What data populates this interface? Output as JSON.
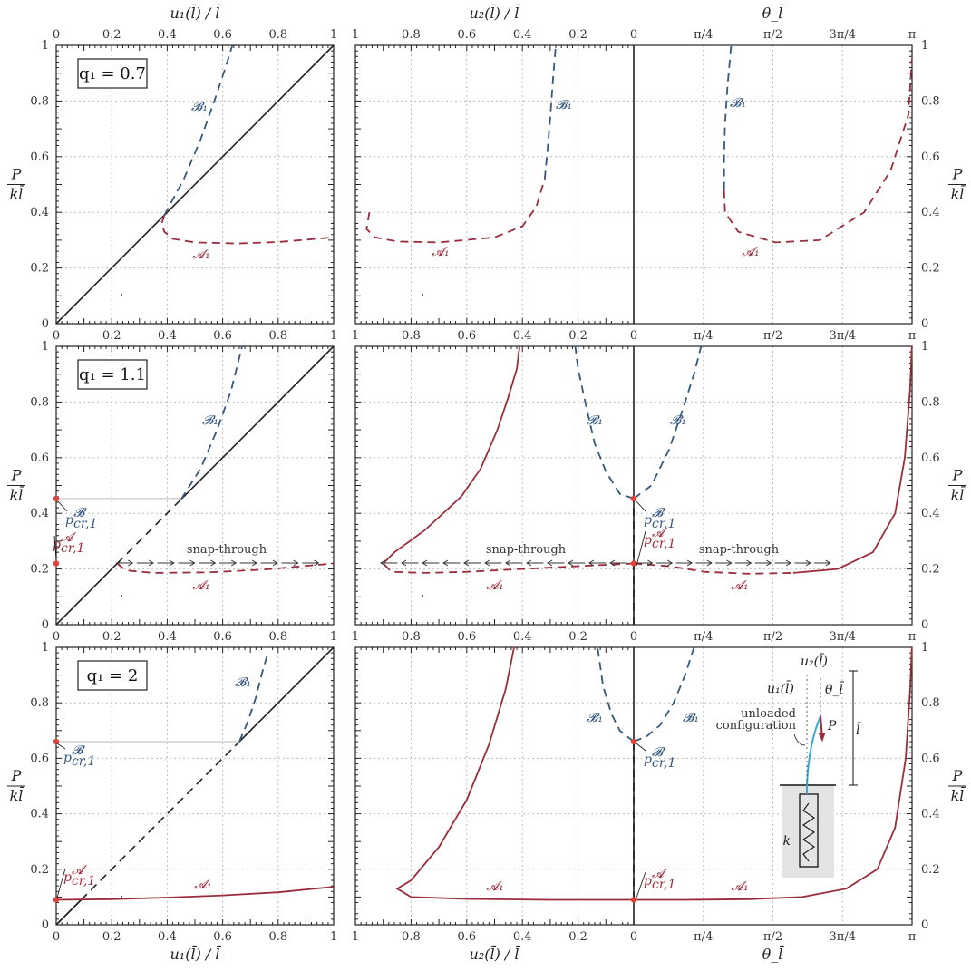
{
  "colors": {
    "A": "#9b2d3b",
    "B": "#34587f",
    "diag": "#222222",
    "pt": "#e0423a",
    "gray": "#c8c8c8",
    "inset_rod": "#3aa7d6"
  },
  "axes": {
    "u1_label": "u₁(l̄) / l̄",
    "u2_label": "u₂(l̄) / l̄",
    "theta_label": "θ_l̄",
    "p_num": "P",
    "p_den": "kl̄",
    "u1_ticks": [
      "0",
      "0.2",
      "0.4",
      "0.6",
      "0.8",
      "1"
    ],
    "u2_ticks": [
      "1",
      "0.8",
      "0.6",
      "0.4",
      "0.2",
      "0"
    ],
    "theta_ticks": [
      "π/4",
      "π/2",
      "3π/4",
      "π"
    ],
    "y_ticks": [
      "0",
      "0.2",
      "0.4",
      "0.6",
      "0.8",
      "1"
    ]
  },
  "annotations": {
    "snap": "snap-through",
    "pcr_b": "p",
    "pcr_b_sup": "𝓑",
    "pcr_sub": "cr,1",
    "pcr_a": "p",
    "pcr_a_sup": "𝓐",
    "A1": "𝓐₁",
    "B1": "𝓑₁"
  },
  "inset": {
    "u2": "u₂(l̄)",
    "u1": "u₁(l̄)",
    "theta": "θ_l̄",
    "P": "P",
    "lbar": "l̄",
    "k": "k",
    "unloaded1": "unloaded",
    "unloaded2": "configuration"
  },
  "chart_data": [
    {
      "q_label": "q₁ = 0.7",
      "type": "line",
      "xlim": [
        0,
        1
      ],
      "ylim": [
        0,
        1
      ],
      "theta_lim": [
        0,
        3.1416
      ],
      "grid": true,
      "A1_left": [
        [
          0.39,
          0.39
        ],
        [
          0.38,
          0.36
        ],
        [
          0.39,
          0.33
        ],
        [
          0.42,
          0.305
        ],
        [
          0.5,
          0.292
        ],
        [
          0.65,
          0.288
        ],
        [
          0.8,
          0.293
        ],
        [
          1.0,
          0.31
        ]
      ],
      "B1_left": [
        [
          0.39,
          0.39
        ],
        [
          0.46,
          0.52
        ],
        [
          0.52,
          0.66
        ],
        [
          0.57,
          0.8
        ],
        [
          0.61,
          0.92
        ],
        [
          0.635,
          1.0
        ]
      ],
      "A1_u2": [
        [
          0.95,
          0.4
        ],
        [
          0.96,
          0.34
        ],
        [
          0.93,
          0.31
        ],
        [
          0.85,
          0.295
        ],
        [
          0.7,
          0.292
        ],
        [
          0.5,
          0.31
        ],
        [
          0.4,
          0.35
        ],
        [
          0.35,
          0.42
        ],
        [
          0.32,
          0.52
        ]
      ],
      "B1_u2": [
        [
          0.32,
          0.52
        ],
        [
          0.31,
          0.62
        ],
        [
          0.3,
          0.74
        ],
        [
          0.29,
          0.88
        ],
        [
          0.28,
          1.0
        ]
      ],
      "A1_theta": [
        [
          1.02,
          0.48
        ],
        [
          1.03,
          0.4
        ],
        [
          1.18,
          0.33
        ],
        [
          1.6,
          0.292
        ],
        [
          2.1,
          0.3
        ],
        [
          2.6,
          0.4
        ],
        [
          2.9,
          0.55
        ],
        [
          3.1,
          0.75
        ],
        [
          3.14,
          0.95
        ]
      ],
      "B1_theta": [
        [
          1.02,
          0.48
        ],
        [
          1.02,
          0.6
        ],
        [
          1.03,
          0.72
        ],
        [
          1.06,
          0.86
        ],
        [
          1.1,
          1.0
        ]
      ]
    },
    {
      "q_label": "q₁ = 1.1",
      "type": "line",
      "xlim": [
        0,
        1
      ],
      "ylim": [
        0,
        1
      ],
      "theta_lim": [
        0,
        3.1416
      ],
      "grid": true,
      "pcr_B": 0.453,
      "pcr_A": 0.22,
      "A1_left": [
        [
          0.22,
          0.22
        ],
        [
          0.25,
          0.195
        ],
        [
          0.35,
          0.186
        ],
        [
          0.55,
          0.188
        ],
        [
          0.75,
          0.198
        ],
        [
          1.0,
          0.22
        ]
      ],
      "B1_left": [
        [
          0.45,
          0.45
        ],
        [
          0.52,
          0.56
        ],
        [
          0.58,
          0.7
        ],
        [
          0.63,
          0.84
        ],
        [
          0.67,
          1.0
        ]
      ],
      "A1_u2_solid": [
        [
          0.1,
          0.22
        ],
        [
          0.9,
          0.22
        ],
        [
          0.86,
          0.26
        ],
        [
          0.75,
          0.34
        ],
        [
          0.62,
          0.46
        ],
        [
          0.55,
          0.56
        ],
        [
          0.49,
          0.7
        ],
        [
          0.45,
          0.82
        ],
        [
          0.42,
          0.92
        ],
        [
          0.41,
          1.0
        ]
      ],
      "A1_u2_dash": [
        [
          0.0,
          0.22
        ],
        [
          0.2,
          0.21
        ],
        [
          0.4,
          0.2
        ],
        [
          0.6,
          0.19
        ],
        [
          0.75,
          0.186
        ],
        [
          0.87,
          0.19
        ],
        [
          0.9,
          0.22
        ]
      ],
      "B1_u2": [
        [
          0.0,
          0.453
        ],
        [
          0.05,
          0.47
        ],
        [
          0.1,
          0.55
        ],
        [
          0.14,
          0.65
        ],
        [
          0.17,
          0.78
        ],
        [
          0.2,
          0.92
        ],
        [
          0.21,
          1.0
        ]
      ],
      "A1_theta_dash": [
        [
          0.0,
          0.22
        ],
        [
          0.4,
          0.21
        ],
        [
          0.8,
          0.19
        ],
        [
          1.3,
          0.183
        ],
        [
          1.8,
          0.186
        ]
      ],
      "A1_theta_solid": [
        [
          1.8,
          0.186
        ],
        [
          2.3,
          0.2
        ],
        [
          2.7,
          0.26
        ],
        [
          2.95,
          0.4
        ],
        [
          3.06,
          0.6
        ],
        [
          3.12,
          0.85
        ],
        [
          3.14,
          1.0
        ]
      ],
      "B1_theta": [
        [
          0.0,
          0.453
        ],
        [
          0.2,
          0.5
        ],
        [
          0.4,
          0.63
        ],
        [
          0.55,
          0.77
        ],
        [
          0.68,
          0.9
        ],
        [
          0.76,
          1.0
        ]
      ]
    },
    {
      "q_label": "q₁ = 2",
      "type": "line",
      "xlim": [
        0,
        1
      ],
      "ylim": [
        0,
        1
      ],
      "theta_lim": [
        0,
        3.1416
      ],
      "grid": true,
      "pcr_B": 0.66,
      "pcr_A": 0.09,
      "A1_left": [
        [
          0.0,
          0.09
        ],
        [
          0.2,
          0.092
        ],
        [
          0.4,
          0.098
        ],
        [
          0.6,
          0.106
        ],
        [
          0.8,
          0.117
        ],
        [
          1.0,
          0.137
        ]
      ],
      "B1_left": [
        [
          0.66,
          0.66
        ],
        [
          0.69,
          0.73
        ],
        [
          0.72,
          0.82
        ],
        [
          0.74,
          0.9
        ],
        [
          0.76,
          0.97
        ]
      ],
      "A1_u2": [
        [
          0.0,
          0.09
        ],
        [
          0.3,
          0.09
        ],
        [
          0.6,
          0.093
        ],
        [
          0.8,
          0.1
        ],
        [
          0.85,
          0.13
        ],
        [
          0.8,
          0.16
        ],
        [
          0.7,
          0.28
        ],
        [
          0.6,
          0.45
        ],
        [
          0.52,
          0.65
        ],
        [
          0.46,
          0.85
        ],
        [
          0.43,
          1.0
        ]
      ],
      "B1_u2": [
        [
          0.0,
          0.66
        ],
        [
          0.05,
          0.7
        ],
        [
          0.08,
          0.76
        ],
        [
          0.11,
          0.86
        ],
        [
          0.13,
          1.0
        ]
      ],
      "A1_theta": [
        [
          0.0,
          0.09
        ],
        [
          0.6,
          0.09
        ],
        [
          1.3,
          0.092
        ],
        [
          1.9,
          0.1
        ],
        [
          2.4,
          0.13
        ],
        [
          2.75,
          0.2
        ],
        [
          2.95,
          0.35
        ],
        [
          3.07,
          0.6
        ],
        [
          3.12,
          0.85
        ],
        [
          3.14,
          1.0
        ]
      ],
      "B1_theta": [
        [
          0.0,
          0.66
        ],
        [
          0.15,
          0.68
        ],
        [
          0.3,
          0.72
        ],
        [
          0.45,
          0.8
        ],
        [
          0.58,
          0.9
        ],
        [
          0.68,
          1.0
        ]
      ]
    }
  ]
}
